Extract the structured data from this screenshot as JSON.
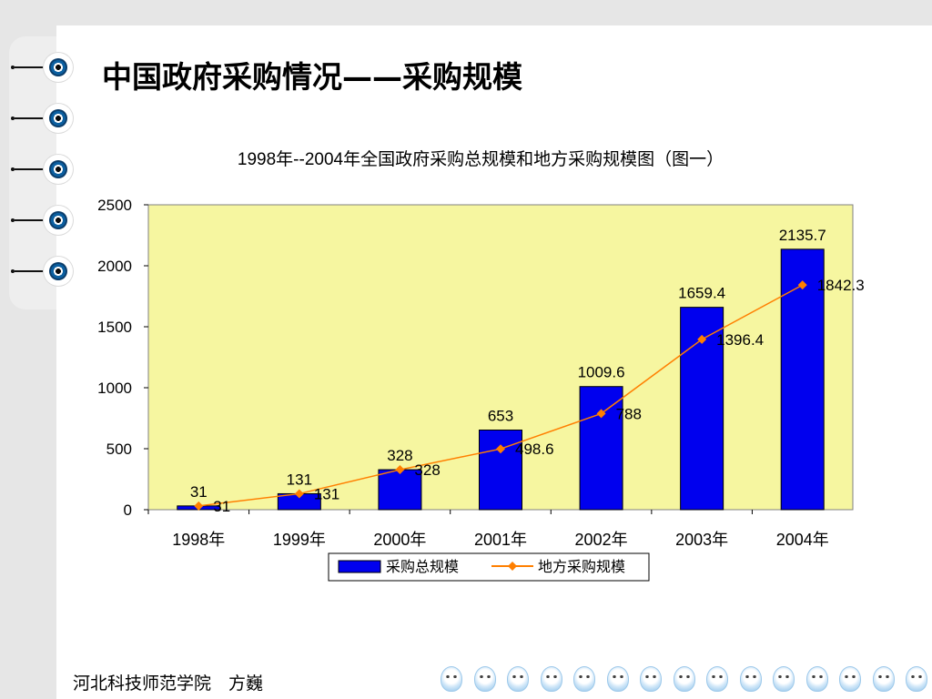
{
  "slide": {
    "title": "中国政府采购情况——采购规模",
    "footer": "河北科技师范学院　方巍"
  },
  "colors": {
    "plot_bg": "#f6f6a0",
    "bar": "#0000ee",
    "line": "#ff7f00",
    "grid": "#cccccc",
    "side": "#e6e6e6"
  },
  "chart_data": {
    "type": "bar",
    "title": "1998年--2004年全国政府采购总规模和地方采购规模图（图一）",
    "categories": [
      "1998年",
      "1999年",
      "2000年",
      "2001年",
      "2002年",
      "2003年",
      "2004年"
    ],
    "ylim": [
      0,
      2500
    ],
    "yticks": [
      0,
      500,
      1000,
      1500,
      2000,
      2500
    ],
    "ytick_labels": [
      "0",
      "500",
      "1000",
      "1500",
      "2000",
      "2500"
    ],
    "grid": false,
    "legend_position": "bottom",
    "series": [
      {
        "name": "采购总规模",
        "kind": "bar",
        "values": [
          31,
          131,
          328,
          653,
          1009.6,
          1659.4,
          2135.7
        ],
        "labels": [
          "31",
          "131",
          "328",
          "653",
          "1009.6",
          "1659.4",
          "2135.7"
        ]
      },
      {
        "name": "地方采购规模",
        "kind": "line",
        "values": [
          31,
          131,
          328,
          498.6,
          788,
          1396.4,
          1842.3
        ],
        "labels": [
          "31",
          "131",
          "328",
          "498.6",
          "788",
          "1396.4",
          "1842.3"
        ]
      }
    ]
  }
}
